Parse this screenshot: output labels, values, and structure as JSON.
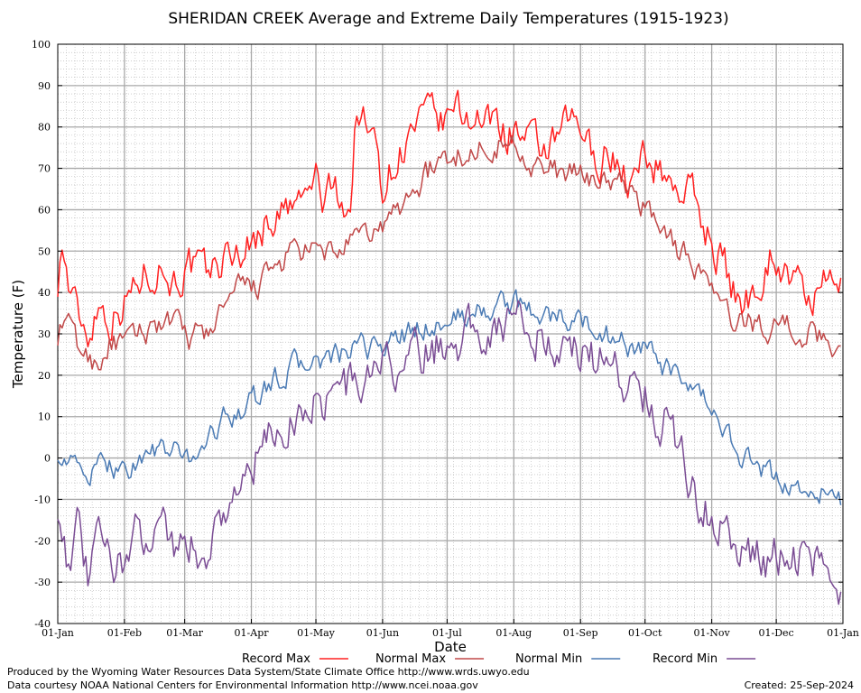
{
  "chart_data": {
    "type": "line",
    "title": "SHERIDAN CREEK Average and Extreme Daily Temperatures (1915-1923)",
    "xlabel": "Date",
    "ylabel": "Temperature (F)",
    "ylim": [
      -40,
      100
    ],
    "y_ticks": [
      "100",
      "90",
      "80",
      "70",
      "60",
      "50",
      "40",
      "30",
      "20",
      "10",
      "0",
      "-10",
      "-20",
      "-30",
      "-40"
    ],
    "x_tick_labels": [
      "01-Jan",
      "01-Feb",
      "01-Mar",
      "01-Apr",
      "01-May",
      "01-Jun",
      "01-Jul",
      "01-Aug",
      "01-Sep",
      "01-Oct",
      "01-Nov",
      "01-Dec",
      "01-Jan"
    ],
    "x_tick_days": [
      1,
      32,
      60,
      91,
      121,
      152,
      182,
      213,
      244,
      274,
      305,
      335,
      366
    ],
    "grid": true,
    "legend_position": "bottom",
    "series": [
      {
        "name": "Record Max",
        "color": "#ff2020",
        "days": [
          1,
          3,
          6,
          10,
          15,
          20,
          25,
          32,
          40,
          48,
          55,
          62,
          70,
          78,
          85,
          91,
          100,
          110,
          118,
          121,
          124,
          130,
          137,
          140,
          146,
          150,
          152,
          160,
          168,
          175,
          182,
          185,
          190,
          195,
          200,
          205,
          210,
          213,
          218,
          225,
          232,
          238,
          244,
          250,
          258,
          265,
          270,
          274,
          280,
          288,
          296,
          305,
          310,
          318,
          326,
          333,
          340,
          348,
          355,
          360,
          365
        ],
        "values": [
          43,
          52,
          42,
          35,
          30,
          38,
          34,
          38,
          44,
          47,
          43,
          46,
          44,
          48,
          50,
          52,
          58,
          60,
          64,
          68,
          62,
          65,
          60,
          85,
          78,
          74,
          66,
          74,
          80,
          82,
          80,
          86,
          82,
          84,
          80,
          83,
          78,
          80,
          76,
          74,
          75,
          80,
          80,
          72,
          74,
          68,
          66,
          74,
          70,
          66,
          64,
          52,
          48,
          36,
          42,
          50,
          44,
          40,
          38,
          43,
          40
        ]
      },
      {
        "name": "Normal Max",
        "color": "#c04848",
        "days": [
          1,
          5,
          10,
          15,
          20,
          25,
          32,
          40,
          48,
          55,
          62,
          70,
          78,
          85,
          91,
          100,
          110,
          121,
          130,
          140,
          152,
          160,
          168,
          175,
          182,
          190,
          195,
          200,
          205,
          213,
          220,
          225,
          232,
          240,
          244,
          252,
          260,
          268,
          274,
          282,
          290,
          300,
          305,
          312,
          320,
          330,
          340,
          350,
          360,
          365
        ],
        "values": [
          30,
          34,
          27,
          24,
          23,
          28,
          27,
          30,
          33,
          32,
          29,
          30,
          36,
          40,
          41,
          44,
          50,
          49,
          50,
          52,
          56,
          60,
          66,
          70,
          72,
          74,
          73,
          77,
          76,
          76,
          73,
          70,
          69,
          68,
          68,
          68,
          66,
          64,
          61,
          56,
          50,
          46,
          40,
          34,
          33,
          32,
          32,
          30,
          28,
          27
        ]
      },
      {
        "name": "Normal Min",
        "color": "#4a7ab4",
        "days": [
          1,
          5,
          10,
          15,
          20,
          25,
          32,
          40,
          48,
          55,
          62,
          70,
          78,
          85,
          91,
          100,
          110,
          121,
          130,
          140,
          152,
          160,
          168,
          175,
          182,
          190,
          195,
          200,
          205,
          213,
          220,
          225,
          232,
          240,
          244,
          252,
          260,
          268,
          274,
          282,
          290,
          300,
          305,
          312,
          320,
          330,
          340,
          350,
          360,
          365
        ],
        "values": [
          2,
          0,
          -3,
          -4,
          -3,
          -1,
          -3,
          0,
          2,
          1,
          0,
          4,
          9,
          12,
          13,
          18,
          22,
          23,
          24,
          26,
          27,
          29,
          31,
          32,
          33,
          34,
          35,
          36,
          37,
          37,
          36,
          35,
          34,
          33,
          33,
          31,
          29,
          27,
          26,
          22,
          18,
          14,
          12,
          6,
          0,
          -4,
          -6,
          -8,
          -9,
          -10
        ]
      },
      {
        "name": "Record Min",
        "color": "#7a4c94",
        "days": [
          1,
          5,
          10,
          15,
          20,
          25,
          32,
          40,
          48,
          55,
          62,
          70,
          78,
          85,
          91,
          100,
          110,
          121,
          130,
          140,
          152,
          160,
          168,
          175,
          182,
          190,
          195,
          200,
          205,
          213,
          220,
          225,
          232,
          240,
          244,
          252,
          260,
          268,
          274,
          282,
          290,
          300,
          305,
          312,
          320,
          330,
          340,
          350,
          360,
          365
        ],
        "values": [
          -10,
          -22,
          -18,
          -30,
          -20,
          -26,
          -24,
          -18,
          -14,
          -20,
          -22,
          -22,
          -12,
          -8,
          -2,
          4,
          10,
          14,
          16,
          18,
          22,
          22,
          24,
          26,
          28,
          30,
          31,
          32,
          33,
          33,
          32,
          30,
          28,
          26,
          25,
          24,
          22,
          18,
          16,
          10,
          2,
          -10,
          -14,
          -18,
          -22,
          -26,
          -22,
          -24,
          -26,
          -30
        ]
      }
    ]
  },
  "footer": {
    "line1": "Produced by the Wyoming Water Resources Data System/State Climate Office http://www.wrds.uwyo.edu",
    "line2": "Data courtesy NOAA National Centers for Environmental Information http://www.ncei.noaa.gov",
    "created": "Created:  25-Sep-2024"
  }
}
